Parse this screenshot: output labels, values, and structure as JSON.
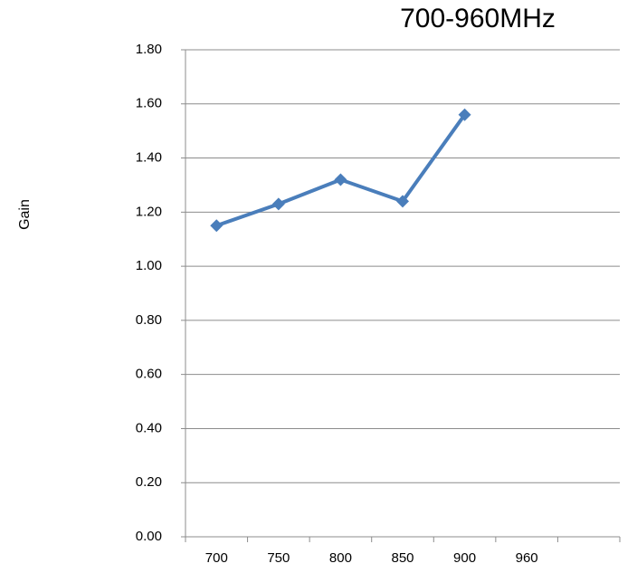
{
  "chart_data": {
    "type": "line",
    "title": "700-960MHz",
    "y_label": "Gain",
    "categories": [
      "700",
      "750",
      "800",
      "850",
      "900",
      "960",
      null
    ],
    "series": [
      {
        "name": "Gain",
        "color": "#4a7ebb",
        "values": [
          1.15,
          1.23,
          1.32,
          1.24,
          1.56,
          null,
          null
        ]
      }
    ],
    "ylim": [
      0,
      1.8
    ],
    "yticks": [
      {
        "value": 0,
        "label": "0.00"
      },
      {
        "value": 0.2,
        "label": "0.20"
      },
      {
        "value": 0.4,
        "label": "0.40"
      },
      {
        "value": 0.6,
        "label": "0.60"
      },
      {
        "value": 0.8,
        "label": "0.80"
      },
      {
        "value": 1.0,
        "label": "1.00"
      },
      {
        "value": 1.2,
        "label": "1.20"
      },
      {
        "value": 1.4,
        "label": "1.40"
      },
      {
        "value": 1.6,
        "label": "1.60"
      },
      {
        "value": 1.8,
        "label": "1.80"
      }
    ],
    "grid": true
  }
}
